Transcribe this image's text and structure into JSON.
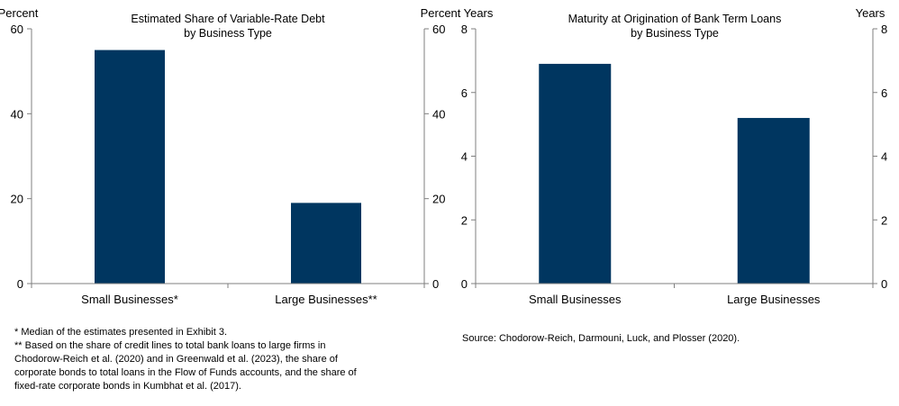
{
  "chart_data": [
    {
      "type": "bar",
      "title": [
        "Estimated Share of Variable-Rate Debt",
        "by Business Type"
      ],
      "ylabel_left": "Percent",
      "ylabel_right": "Percent",
      "categories": [
        "Small Businesses*",
        "Large Businesses**"
      ],
      "values": [
        55,
        19
      ],
      "ylim": [
        0,
        60
      ],
      "yticks": [
        0,
        20,
        40,
        60
      ],
      "bar_color": "#003660",
      "grid": false
    },
    {
      "type": "bar",
      "title": [
        "Maturity at Origination of Bank Term Loans",
        "by Business Type"
      ],
      "ylabel_left": "Years",
      "ylabel_right": "Years",
      "categories": [
        "Small Businesses",
        "Large Businesses"
      ],
      "values": [
        6.9,
        5.2
      ],
      "ylim": [
        0,
        8
      ],
      "yticks": [
        0,
        2,
        4,
        6,
        8
      ],
      "bar_color": "#003660",
      "grid": false
    }
  ],
  "footnotes": [
    "* Median of the estimates presented in Exhibit 3.",
    "** Based on the share of credit lines to total bank loans to large firms in",
    "Chodorow-Reich et al. (2020) and in Greenwald et al. (2023), the share of",
    "corporate bonds to total loans in the Flow of Funds accounts, and the share of",
    "fixed-rate corporate bonds in Kumbhat et al. (2017)."
  ],
  "source": "Source: Chodorow-Reich, Darmouni, Luck, and Plosser (2020)."
}
